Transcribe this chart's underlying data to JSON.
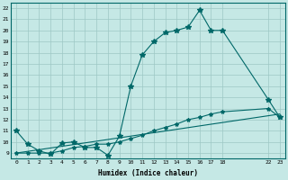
{
  "xlabel": "Humidex (Indice chaleur)",
  "bg_color": "#c5e8e5",
  "grid_color": "#9dc8c5",
  "line_color": "#006868",
  "xlim": [
    -0.5,
    23.5
  ],
  "ylim": [
    8.5,
    22.5
  ],
  "xtick_positions": [
    0,
    1,
    2,
    3,
    4,
    5,
    6,
    7,
    8,
    9,
    10,
    11,
    12,
    13,
    14,
    15,
    16,
    17,
    18,
    22,
    23
  ],
  "xtick_labels": [
    "0",
    "1",
    "2",
    "3",
    "4",
    "5",
    "6",
    "7",
    "8",
    "9",
    "10",
    "11",
    "12",
    "13",
    "14",
    "15",
    "16",
    "17",
    "18",
    "22",
    "23"
  ],
  "ytick_positions": [
    9,
    10,
    11,
    12,
    13,
    14,
    15,
    16,
    17,
    18,
    19,
    20,
    21,
    22
  ],
  "ytick_labels": [
    "9",
    "10",
    "11",
    "12",
    "13",
    "14",
    "15",
    "16",
    "17",
    "18",
    "19",
    "20",
    "21",
    "22"
  ],
  "line1_x": [
    0,
    1,
    2,
    3,
    4,
    5,
    6,
    7,
    8,
    9,
    10,
    11,
    12,
    13,
    14,
    15,
    16,
    17,
    18,
    22,
    23
  ],
  "line1_y": [
    11.0,
    9.8,
    9.2,
    8.9,
    9.9,
    10.0,
    9.5,
    9.5,
    8.8,
    10.5,
    15.0,
    17.8,
    19.0,
    19.8,
    20.0,
    20.3,
    21.8,
    20.0,
    20.0,
    13.8,
    12.2
  ],
  "line2_x": [
    0,
    1,
    2,
    3,
    4,
    5,
    6,
    7,
    8,
    9,
    10,
    11,
    12,
    13,
    14,
    15,
    16,
    17,
    18,
    22,
    23
  ],
  "line2_y": [
    9.0,
    9.0,
    9.0,
    9.0,
    9.2,
    9.5,
    9.6,
    9.8,
    9.8,
    10.0,
    10.3,
    10.6,
    11.0,
    11.3,
    11.6,
    12.0,
    12.2,
    12.5,
    12.7,
    13.0,
    12.2
  ],
  "line3_x": [
    0,
    23
  ],
  "line3_y": [
    9.0,
    12.5
  ]
}
